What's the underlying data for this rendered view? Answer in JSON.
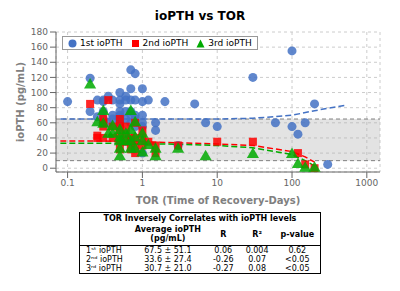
{
  "chart_data": {
    "type": "scatter",
    "title": "ioPTH vs TOR",
    "xlabel": "TOR (Time of Recovery-Days)",
    "ylabel": "ioPTH (pg/mL)",
    "log": "x",
    "xlim": [
      0.07,
      1500
    ],
    "xticks": [
      0.1,
      1,
      10,
      100,
      1000
    ],
    "ylim": [
      -5,
      180
    ],
    "yticks": [
      0,
      20,
      40,
      60,
      80,
      100,
      120,
      140,
      160,
      180
    ],
    "grid": true,
    "legend": "upper left",
    "normal_range": [
      10,
      65
    ],
    "series": [
      {
        "name": "1st ioPTH",
        "type": "scatter",
        "color": "#4472C4",
        "marker": "circle",
        "x": [
          0.1,
          0.2,
          0.2,
          0.25,
          0.25,
          0.3,
          0.3,
          0.3,
          0.3,
          0.3,
          0.35,
          0.35,
          0.4,
          0.4,
          0.4,
          0.5,
          0.5,
          0.5,
          0.5,
          0.5,
          0.5,
          0.5,
          0.5,
          0.5,
          0.6,
          0.6,
          0.6,
          0.6,
          0.7,
          0.7,
          0.7,
          0.7,
          0.7,
          0.7,
          0.8,
          0.8,
          0.8,
          0.8,
          0.8,
          1.0,
          1.0,
          1.0,
          1.0,
          1.0,
          1.0,
          1.2,
          1.5,
          1.5,
          2.0,
          3.0,
          5.0,
          7.0,
          10.0,
          30.0,
          60.0,
          100.0,
          100.0,
          120.0,
          150.0,
          200.0,
          300.0
        ],
        "values": [
          88,
          119,
          75,
          90,
          68,
          90,
          88,
          75,
          65,
          60,
          95,
          60,
          90,
          70,
          65,
          100,
          90,
          85,
          75,
          70,
          68,
          65,
          60,
          55,
          95,
          90,
          75,
          65,
          130,
          105,
          90,
          75,
          70,
          60,
          125,
          90,
          70,
          65,
          55,
          105,
          88,
          70,
          60,
          55,
          20,
          90,
          60,
          50,
          88,
          30,
          85,
          60,
          55,
          120,
          60,
          155,
          55,
          45,
          60,
          85,
          5
        ]
      },
      {
        "name": "2nd ioPTH",
        "type": "scatter",
        "color": "#FF0000",
        "marker": "square",
        "x": [
          0.2,
          0.25,
          0.25,
          0.3,
          0.3,
          0.3,
          0.3,
          0.35,
          0.4,
          0.4,
          0.5,
          0.5,
          0.5,
          0.5,
          0.5,
          0.6,
          0.6,
          0.6,
          0.7,
          0.7,
          0.7,
          0.8,
          0.8,
          0.8,
          0.8,
          1.0,
          1.0,
          1.0,
          1.2,
          1.5,
          1.5,
          3.0,
          10.0,
          30.0,
          120.0,
          150.0,
          200.0
        ],
        "values": [
          85,
          43,
          40,
          65,
          60,
          55,
          40,
          90,
          55,
          40,
          65,
          55,
          45,
          35,
          25,
          55,
          45,
          35,
          40,
          35,
          25,
          60,
          40,
          30,
          20,
          50,
          40,
          30,
          35,
          30,
          20,
          30,
          35,
          35,
          20,
          5,
          0
        ]
      },
      {
        "name": "3rd ioPTH",
        "type": "scatter",
        "color": "#00AA00",
        "marker": "triangle",
        "x": [
          0.2,
          0.25,
          0.3,
          0.3,
          0.35,
          0.4,
          0.4,
          0.5,
          0.5,
          0.5,
          0.5,
          0.5,
          0.6,
          0.6,
          0.7,
          0.7,
          0.7,
          0.7,
          0.8,
          0.8,
          0.8,
          1.0,
          1.0,
          1.0,
          1.2,
          1.5,
          1.5,
          3.0,
          7.0,
          30.0,
          100.0,
          120.0,
          150.0,
          200.0
        ],
        "values": [
          110,
          60,
          75,
          58,
          45,
          55,
          45,
          50,
          40,
          35,
          25,
          15,
          45,
          35,
          75,
          50,
          35,
          25,
          60,
          40,
          25,
          45,
          35,
          20,
          30,
          25,
          15,
          25,
          15,
          18,
          18,
          5,
          0,
          0
        ]
      },
      {
        "type": "line",
        "color": "#4472C4",
        "line_style": "dashed",
        "x": [
          0.08,
          0.2,
          0.3,
          0.5,
          1.0,
          2.0,
          5.0,
          10.0,
          30.0,
          100.0,
          200.0,
          500.0
        ],
        "values": [
          65,
          65,
          65,
          65,
          65,
          65,
          65,
          65,
          66,
          70,
          76,
          83
        ]
      },
      {
        "type": "line",
        "color": "#FF0000",
        "line_style": "dashed",
        "x": [
          0.08,
          0.2,
          0.3,
          0.5,
          1.0,
          2.0,
          5.0,
          10.0,
          30.0,
          100.0,
          150.0,
          200.0
        ],
        "values": [
          36,
          36,
          36,
          35,
          35,
          34,
          33,
          32,
          30,
          22,
          15,
          8
        ]
      },
      {
        "type": "line",
        "color": "#00AA00",
        "line_style": "dashed",
        "x": [
          0.08,
          0.2,
          0.3,
          0.5,
          1.0,
          2.0,
          5.0,
          10.0,
          30.0,
          100.0,
          150.0,
          200.0
        ],
        "values": [
          33,
          33,
          33,
          33,
          32,
          32,
          31,
          30,
          27,
          18,
          10,
          3
        ]
      }
    ],
    "table": {
      "title": "TOR Inversely Correlates with ioPTH levels",
      "headers": [
        null,
        "Average ioPTH\n(pg/mL)",
        "R",
        "R²",
        "p-value"
      ],
      "rows": [
        [
          "1ˢᵗ ioPTH",
          "67.5 ± 51.1",
          "0.06",
          "0.004",
          "0.62"
        ],
        [
          "2ⁿᵈ ioPTH",
          "33.6 ± 27.4",
          "-0.26",
          "0.07",
          "<0.05"
        ],
        [
          "3ʳᵈ ioPTH",
          "30.7 ± 21.0",
          "-0.27",
          "0.08",
          "<0.05"
        ]
      ]
    }
  }
}
